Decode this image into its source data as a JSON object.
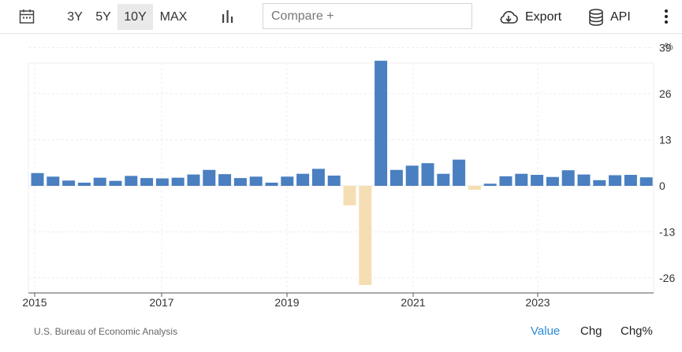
{
  "toolbar": {
    "ranges": [
      "3Y",
      "5Y",
      "10Y",
      "MAX"
    ],
    "active_range": "10Y",
    "compare_placeholder": "Compare +",
    "export_label": "Export",
    "api_label": "API",
    "icons": [
      "calendar-icon",
      "bar-chart-icon",
      "cloud-download-icon",
      "database-icon",
      "more-vertical-icon"
    ]
  },
  "chart_data": {
    "type": "bar",
    "unit": "%",
    "x_ticks": [
      "2015",
      "2017",
      "2019",
      "2021",
      "2023"
    ],
    "y_ticks": [
      39,
      26,
      13,
      0,
      -13,
      -26
    ],
    "ylim": [
      -30,
      40
    ],
    "grid": true,
    "positive_color": "#4a7fc1",
    "negative_color": "#f5deb3",
    "series": [
      {
        "values": [
          3.6,
          2.6,
          1.5,
          0.9,
          2.3,
          1.4,
          2.8,
          2.2,
          2.1,
          2.3,
          3.2,
          4.5,
          3.3,
          2.2,
          2.6,
          0.9,
          2.6,
          3.4,
          4.8,
          2.9,
          -5.5,
          -28.0,
          35.3,
          4.5,
          5.7,
          6.4,
          3.4,
          7.4,
          -1.1,
          0.6,
          2.7,
          3.4,
          3.1,
          2.5,
          4.4,
          3.2,
          1.6,
          3.0,
          3.1,
          2.4
        ]
      }
    ]
  },
  "footer": {
    "source": "U.S. Bureau of Economic Analysis",
    "tabs": [
      "Value",
      "Chg",
      "Chg%"
    ],
    "active_tab": "Value"
  }
}
